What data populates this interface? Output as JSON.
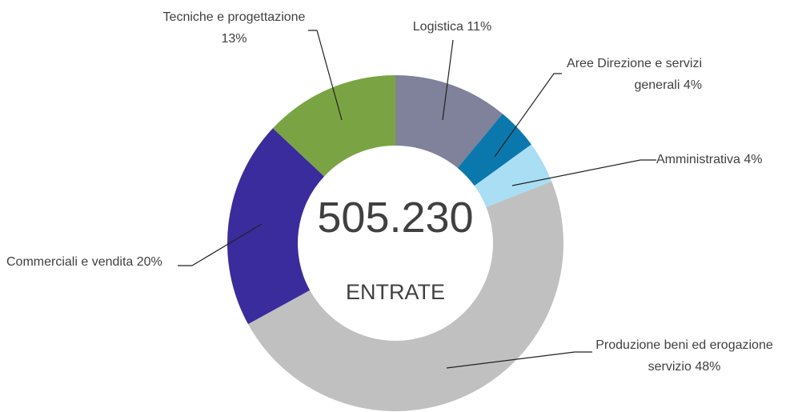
{
  "chart_data": {
    "type": "donut",
    "categories": [
      "Logistica",
      "Aree Direzione e servizi generali",
      "Amministrativa",
      "Produzione beni ed erogazione servizio",
      "Commerciali e vendita",
      "Tecniche e progettazione"
    ],
    "values": [
      11,
      4,
      4,
      48,
      20,
      13
    ],
    "value_labels": [
      "11%",
      "4%",
      "4%",
      "48%",
      "20%",
      "13%"
    ],
    "colors": [
      "#80819a",
      "#0b78ad",
      "#a9def4",
      "#c0c0c0",
      "#3a2c9c",
      "#7aa443"
    ],
    "center_value": "505.230",
    "center_label": "ENTRATE"
  }
}
